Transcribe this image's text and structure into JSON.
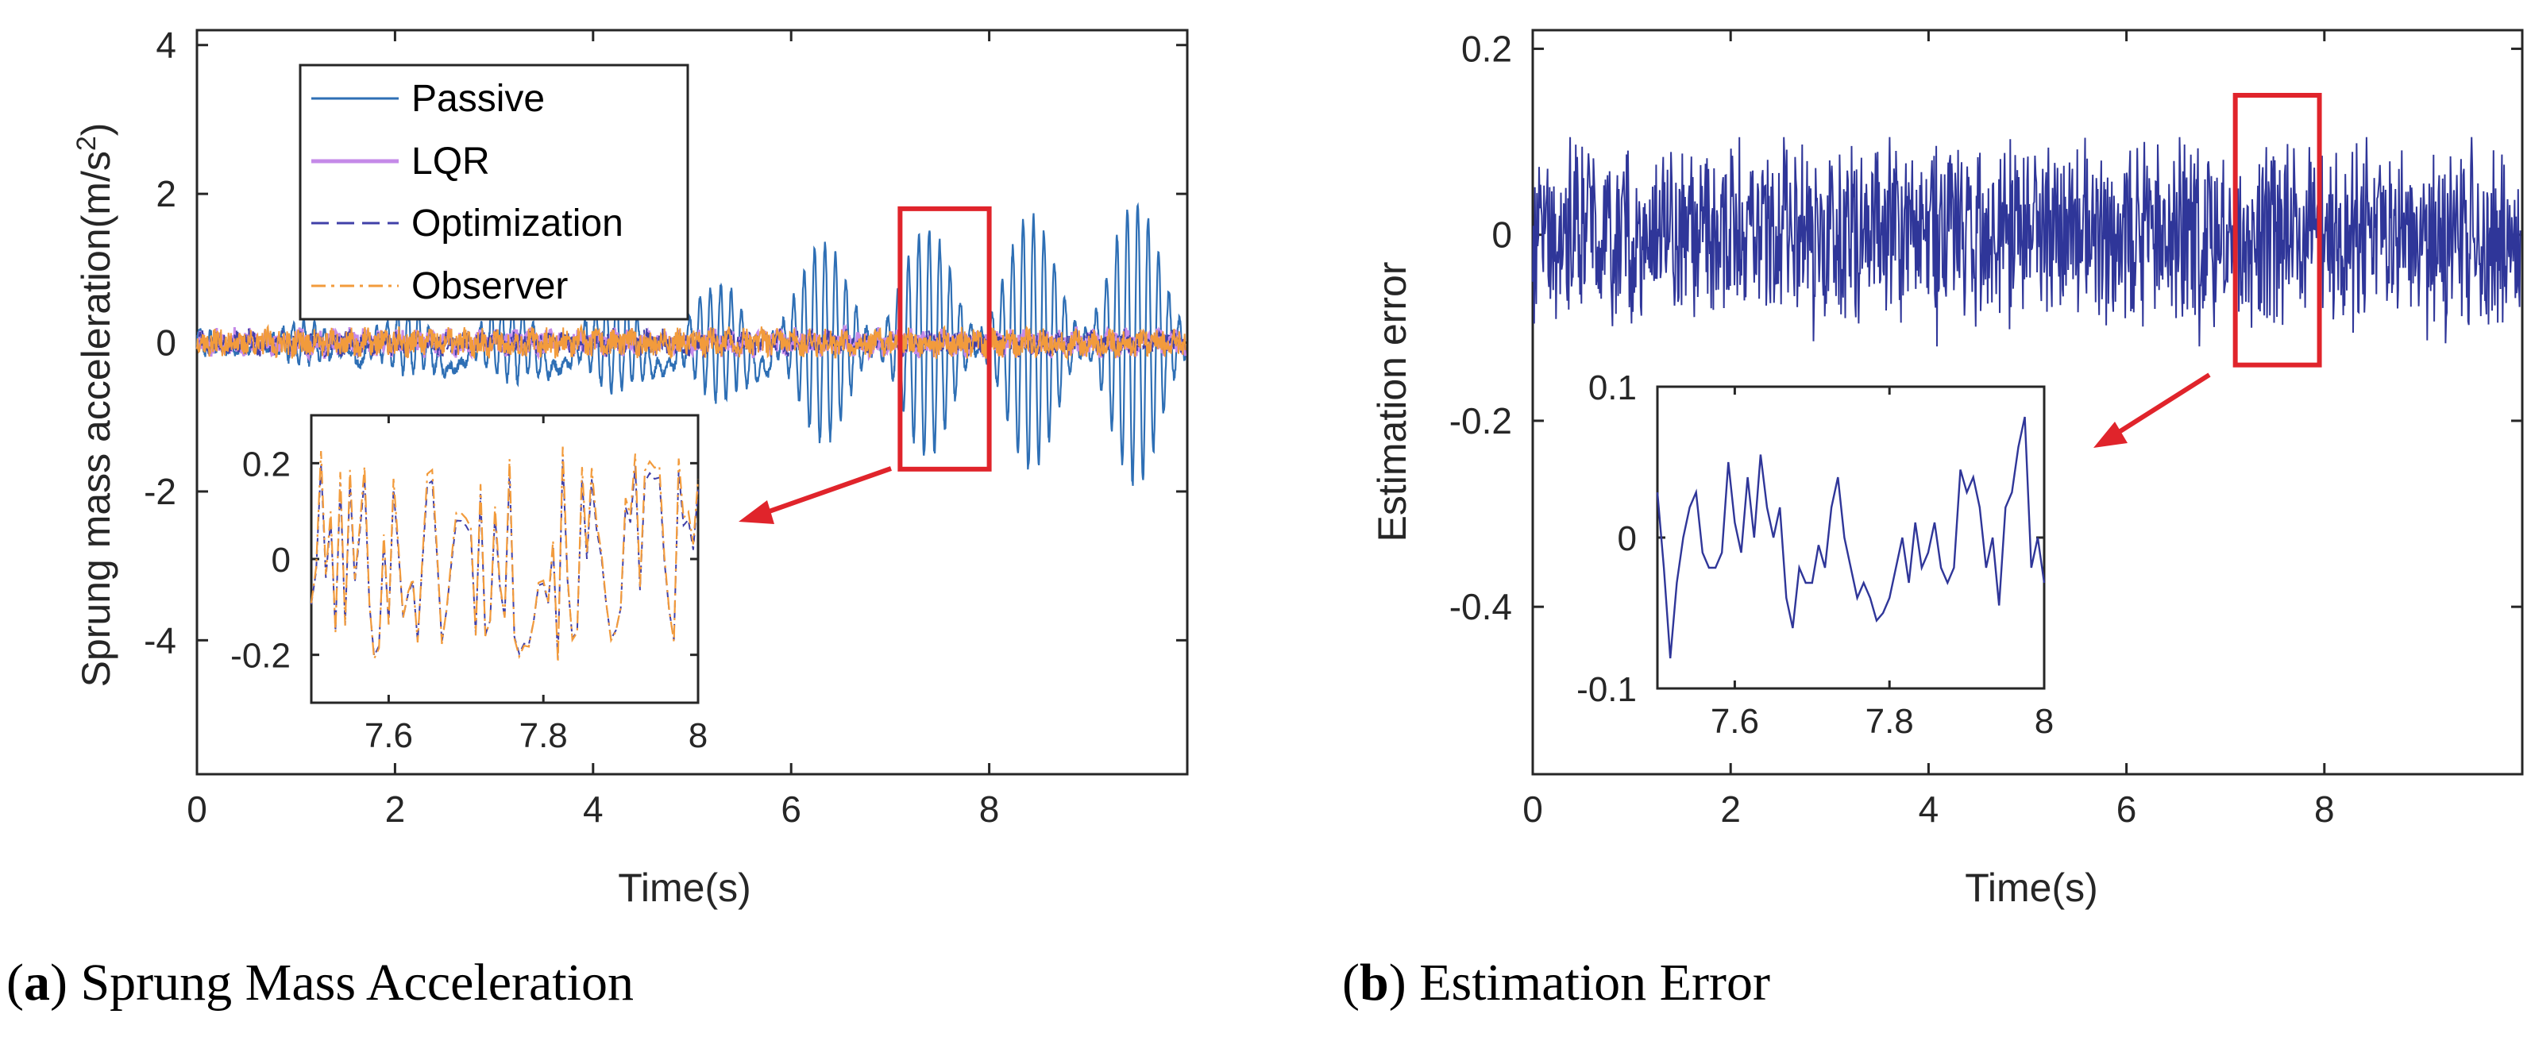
{
  "chart_data": [
    {
      "type": "line",
      "panel": "a",
      "caption_letter": "a",
      "caption_text": "Sprung Mass Acceleration",
      "xlabel": "Time(s)",
      "ylabel": "Sprung mass acceleration(m/s",
      "ylabel_sup": "2",
      "ylabel_close": ")",
      "xlim": [
        0,
        10
      ],
      "ylim": [
        -5.8,
        4.2
      ],
      "xticks": [
        0,
        2,
        4,
        6,
        8
      ],
      "yticks": [
        4,
        2,
        0,
        -2,
        -4
      ],
      "legend": {
        "placement": "top-left",
        "entries": [
          "Passive",
          "LQR",
          "Optimization",
          "Observer"
        ]
      },
      "series": [
        {
          "name": "Passive",
          "color": "#2e6fb5",
          "style": "solid",
          "description_amplitude": [
            0.3,
            0.4,
            0.6,
            0.8,
            1.0,
            1.2,
            1.5
          ]
        },
        {
          "name": "LQR",
          "color": "#c58ae8",
          "style": "solid"
        },
        {
          "name": "Optimization",
          "color": "#4040a8",
          "style": "dashed"
        },
        {
          "name": "Observer",
          "color": "#f29b3c",
          "style": "dashdot"
        }
      ],
      "highlight_box": {
        "x_range": [
          7.1,
          8.0
        ],
        "y_range": [
          -1.7,
          1.8
        ],
        "color": "#e0242b"
      },
      "inset": {
        "xlim": [
          7.5,
          8.0
        ],
        "ylim": [
          -0.3,
          0.3
        ],
        "xticks": [
          "7.6",
          "7.8",
          "8"
        ],
        "yticks": [
          "0.2",
          "0",
          "-0.2"
        ]
      }
    },
    {
      "type": "line",
      "panel": "b",
      "caption_letter": "b",
      "caption_text": "Estimation Error",
      "xlabel": "Time(s)",
      "ylabel": "Estimation error",
      "xlim": [
        0,
        10
      ],
      "ylim": [
        -0.58,
        0.22
      ],
      "xticks": [
        0,
        2,
        4,
        6,
        8
      ],
      "yticks": [
        "0.2",
        "0",
        "-0.2",
        "-0.4"
      ],
      "series": [
        {
          "name": "Estimation error",
          "color": "#2f3699",
          "style": "solid",
          "amplitude_range": [
            -0.12,
            0.11
          ]
        }
      ],
      "highlight_box": {
        "x_range": [
          7.1,
          7.95
        ],
        "y_range": [
          -0.14,
          0.15
        ],
        "color": "#e0242b"
      },
      "inset": {
        "xlim": [
          7.5,
          8.0
        ],
        "ylim": [
          -0.1,
          0.1
        ],
        "xticks": [
          "7.6",
          "7.8",
          "8"
        ],
        "yticks": [
          "0.1",
          "0",
          "-0.1"
        ],
        "values": [
          0.03,
          -0.02,
          -0.08,
          -0.03,
          0.0,
          0.02,
          0.03,
          -0.01,
          -0.02,
          -0.02,
          -0.01,
          0.05,
          0.01,
          -0.01,
          0.04,
          0.0,
          0.055,
          0.02,
          0.0,
          0.02,
          -0.04,
          -0.06,
          -0.02,
          -0.03,
          -0.03,
          -0.005,
          -0.02,
          0.02,
          0.04,
          0.0,
          -0.02,
          -0.04,
          -0.03,
          -0.04,
          -0.055,
          -0.05,
          -0.04,
          -0.02,
          0.0,
          -0.03,
          0.01,
          -0.02,
          -0.01,
          0.01,
          -0.02,
          -0.03,
          -0.02,
          0.045,
          0.03,
          0.04,
          0.02,
          -0.02,
          0.0,
          -0.045,
          0.02,
          0.03,
          0.06,
          0.08,
          -0.02,
          0.0,
          -0.03
        ]
      }
    }
  ],
  "captions": {
    "a": {
      "letter": "a",
      "text": "Sprung Mass Acceleration"
    },
    "b": {
      "letter": "b",
      "text": "Estimation Error"
    }
  }
}
